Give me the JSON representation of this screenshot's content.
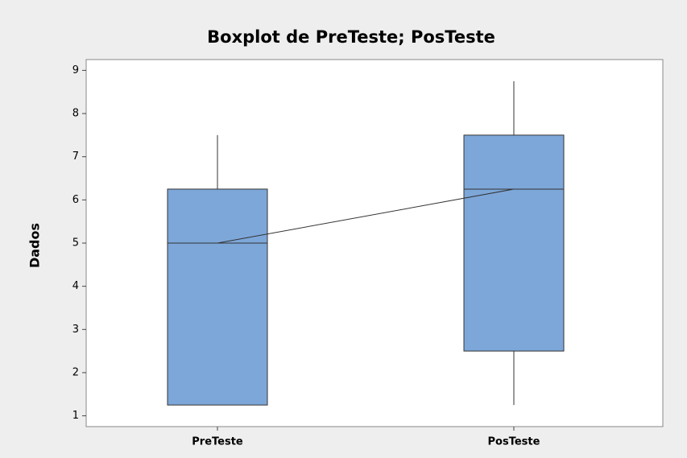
{
  "chart_data": {
    "type": "box",
    "title": "Boxplot de PreTeste; PosTeste",
    "ylabel": "Dados",
    "categories": [
      "PreTeste",
      "PosTeste"
    ],
    "boxes": [
      {
        "min": 1.25,
        "q1": 1.25,
        "median": 5,
        "q3": 6.25,
        "max": 7.5
      },
      {
        "min": 1.25,
        "q1": 2.5,
        "median": 6.25,
        "q3": 7.5,
        "max": 8.75
      }
    ],
    "color": "#7da7d9",
    "connect_medians": true,
    "ylim": [
      0.75,
      9.25
    ],
    "yticks": [
      1,
      2,
      3,
      4,
      5,
      6,
      7,
      8,
      9
    ]
  }
}
